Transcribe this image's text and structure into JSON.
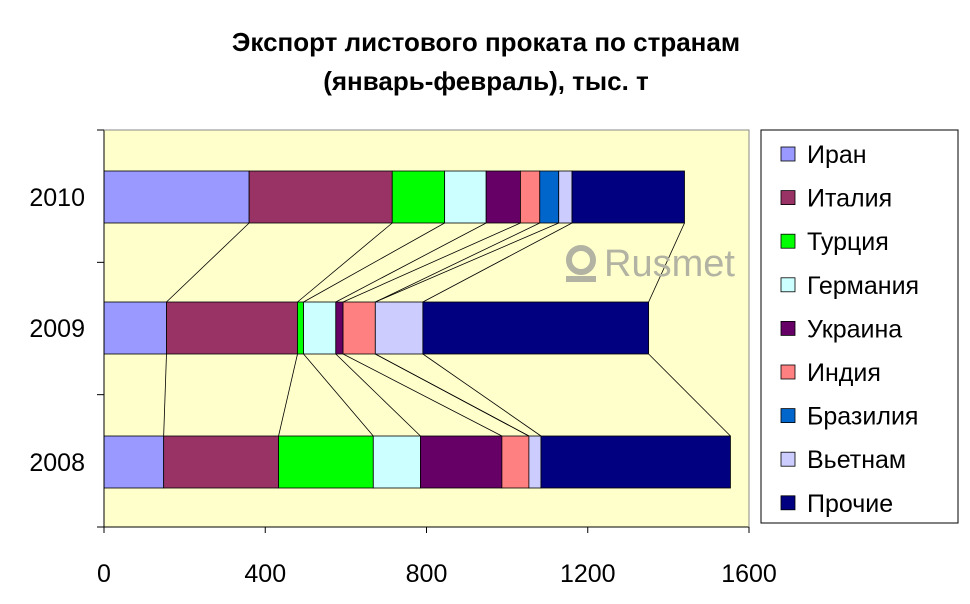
{
  "chart_data": {
    "type": "bar",
    "stacked": true,
    "orientation": "horizontal",
    "title": "Экспорт листового проката по странам",
    "subtitle": "(январь-февраль), тыс. т",
    "categories": [
      "2010",
      "2009",
      "2008"
    ],
    "xlim": [
      0,
      1600
    ],
    "x_ticks": [
      "0",
      "400",
      "800",
      "1200",
      "1600"
    ],
    "x_tick_values": [
      0,
      400,
      800,
      1200,
      1600
    ],
    "plot_background": "#ffffcc",
    "series_lines": true,
    "legend_position": "right",
    "series": [
      {
        "name": "Иран",
        "color": "#9999ff",
        "values": [
          360,
          155,
          148
        ]
      },
      {
        "name": "Италия",
        "color": "#993366",
        "values": [
          355,
          325,
          285
        ]
      },
      {
        "name": "Турция",
        "color": "#00ff00",
        "values": [
          130,
          15,
          235
        ]
      },
      {
        "name": "Германия",
        "color": "#ccffff",
        "values": [
          103,
          80,
          117
        ]
      },
      {
        "name": "Украина",
        "color": "#660066",
        "values": [
          85,
          18,
          202
        ]
      },
      {
        "name": "Индия",
        "color": "#ff8080",
        "values": [
          48,
          80,
          67
        ]
      },
      {
        "name": "Бразилия",
        "color": "#0066cc",
        "values": [
          47,
          0,
          0
        ]
      },
      {
        "name": "Вьетнам",
        "color": "#ccccff",
        "values": [
          33,
          118,
          30
        ]
      },
      {
        "name": "Прочие",
        "color": "#000080",
        "values": [
          279,
          560,
          470
        ]
      }
    ]
  },
  "watermark": {
    "text": "Rusmet"
  }
}
